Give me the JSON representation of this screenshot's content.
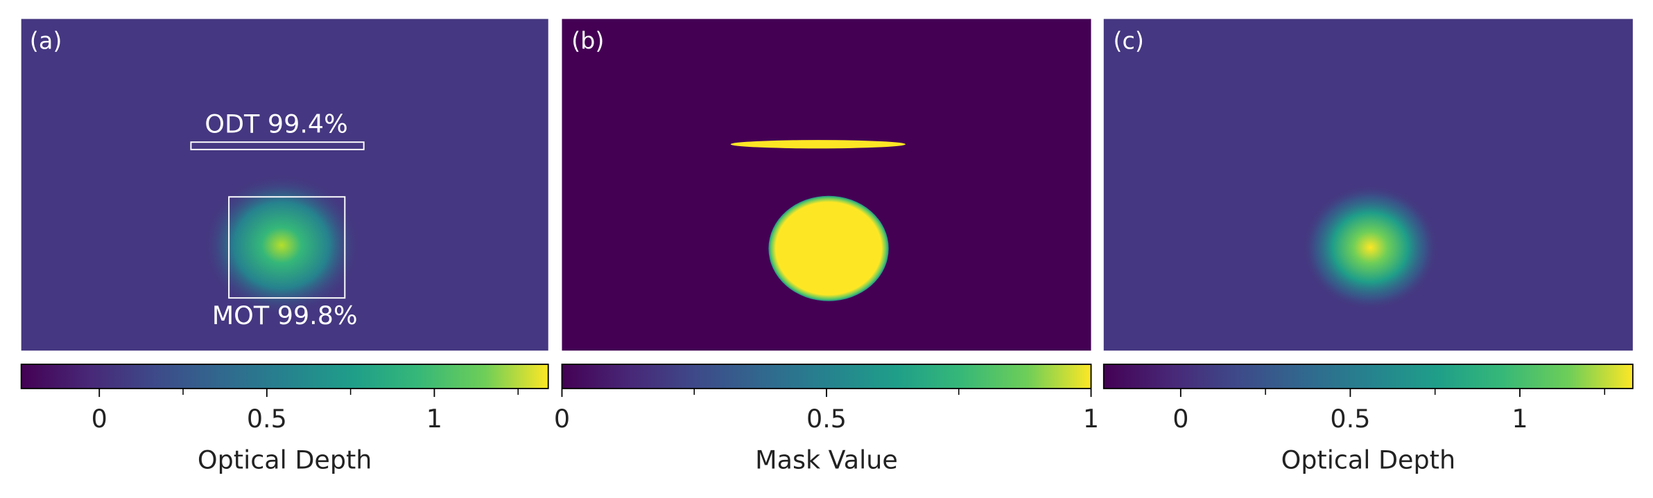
{
  "chart_data": [
    {
      "type": "image",
      "panel_label": "(a)",
      "colormap": "viridis",
      "colorbar_label": "Optical Depth",
      "xlim": [
        -0.233,
        1.34
      ],
      "xticks": [
        0,
        0.5,
        1
      ],
      "minor_xticks": [
        0.25,
        0.75,
        1.25
      ],
      "annotations": [
        "ODT 99.4%",
        "MOT 99.8%"
      ]
    },
    {
      "type": "image",
      "panel_label": "(b)",
      "colormap": "viridis",
      "colorbar_label": "Mask Value",
      "xlim": [
        0,
        1
      ],
      "xticks": [
        0,
        0.5,
        1
      ],
      "minor_xticks": [
        0.25,
        0.75
      ]
    },
    {
      "type": "image",
      "panel_label": "(c)",
      "colormap": "viridis",
      "colorbar_label": "Optical Depth",
      "xlim": [
        -0.227,
        1.333
      ],
      "xticks": [
        0,
        0.5,
        1
      ],
      "minor_xticks": [
        0.25,
        0.75,
        1.25
      ]
    }
  ]
}
